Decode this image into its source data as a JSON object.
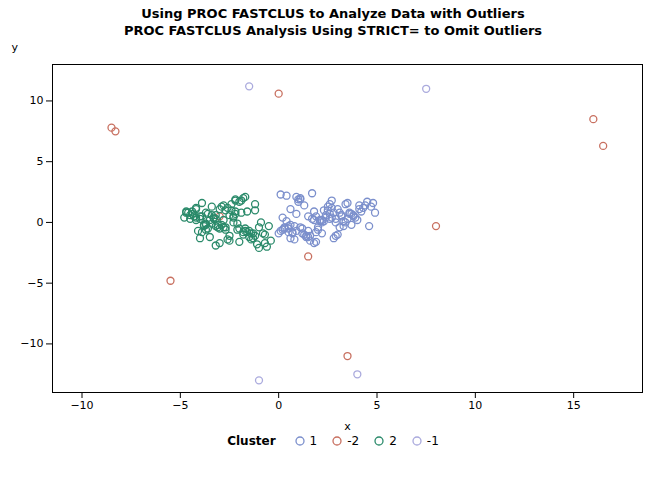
{
  "chart_data": {
    "type": "scatter",
    "title": "Using PROC FASTCLUS to Analyze Data with Outliers",
    "subtitle": "PROC FASTCLUS Analysis Using STRICT= to Omit Outliers",
    "xlabel": "x",
    "ylabel": "y",
    "xlim": [
      -11.5,
      18.5
    ],
    "ylim": [
      -14,
      13
    ],
    "xticks": [
      -10,
      -5,
      0,
      5,
      10,
      15
    ],
    "yticks": [
      -10,
      -5,
      0,
      5,
      10
    ],
    "grid": false,
    "legend": "bottom",
    "legend_title": "Cluster",
    "series": [
      {
        "name": "1",
        "color": "#7b8fcc",
        "x": [
          0.2,
          0.6,
          0.9,
          1.1,
          1.3,
          0.4,
          0.7,
          1.5,
          1.8,
          2.0,
          2.2,
          1.0,
          0.5,
          2.4,
          1.6,
          2.7,
          2.9,
          1.9,
          3.1,
          2.6,
          1.2,
          3.4,
          2.8,
          1.1,
          3.7,
          0.1,
          2.3,
          3.0,
          1.8,
          2.5,
          0.6,
          3.2,
          0.9,
          1.9,
          3.9,
          3.5,
          0.3,
          2.1,
          1.4,
          3.6,
          4.1,
          0.0,
          1.7,
          3.3,
          2.7,
          0.8,
          3.8,
          2.2,
          1.5,
          4.4,
          0.5,
          2.6,
          2.9,
          1.1,
          4.0,
          3.4,
          0.7,
          2.4,
          1.6,
          4.2,
          3.1,
          0.4,
          2.8,
          1.3,
          4.3,
          0.2,
          1.9,
          3.7,
          1.0,
          2.3,
          4.5,
          0.6,
          3.5,
          1.2,
          2.5,
          4.6,
          0.1,
          3.2,
          1.8,
          2.1,
          4.7,
          0.3,
          3.6,
          1.4,
          2.7,
          4.8,
          0.9,
          3.3,
          2.0,
          3.0,
          4.9,
          0.5,
          2.6,
          1.5,
          3.8,
          4.1,
          0.8,
          2.9,
          2.2,
          1.7
        ],
        "y": [
          0.4,
          1.1,
          0.7,
          -0.4,
          1.4,
          0.1,
          -0.9,
          0.5,
          0.9,
          -0.6,
          0.2,
          1.7,
          -0.3,
          0.6,
          -1.1,
          1.2,
          0.3,
          -0.8,
          0.8,
          1.5,
          -0.5,
          0.0,
          -1.3,
          1.9,
          0.7,
          -0.7,
          1.0,
          -1.0,
          0.2,
          1.3,
          -0.2,
          0.5,
          2.1,
          -1.6,
          0.4,
          1.6,
          -0.4,
          0.1,
          -1.2,
          0.8,
          1.1,
          -0.9,
          0.3,
          -0.3,
          1.8,
          -1.4,
          0.6,
          0.0,
          -0.7,
          1.4,
          -0.5,
          0.7,
          -1.1,
          2.0,
          0.2,
          1.5,
          -0.8,
          0.4,
          -1.5,
          0.9,
          -0.4,
          2.2,
          0.8,
          -1.0,
          1.2,
          -0.6,
          0.5,
          -0.2,
          1.9,
          0.1,
          1.7,
          -1.3,
          0.3,
          -0.9,
          1.0,
          -0.3,
          2.3,
          0.6,
          -1.7,
          0.2,
          1.3,
          -0.5,
          0.7,
          -1.1,
          0.4,
          1.6,
          -0.7,
          0.1,
          -0.4,
          1.1,
          0.8,
          -0.8,
          0.3,
          -1.2,
          0.5,
          1.4,
          -0.3,
          0.0,
          -0.9,
          2.4
        ]
      },
      {
        "name": "-2",
        "color": "#c87060",
        "x": [
          -8.5,
          -8.3,
          -5.5,
          0.0,
          -3.0,
          1.5,
          8.0,
          16.0,
          16.5,
          3.5
        ],
        "y": [
          7.8,
          7.5,
          -4.8,
          10.6,
          0.5,
          -2.8,
          -0.3,
          8.5,
          6.3,
          -11.0
        ]
      },
      {
        "name": "2",
        "color": "#2a8a6a",
        "x": [
          -3.2,
          -2.7,
          -2.2,
          -3.7,
          -3.0,
          -1.7,
          -3.4,
          -2.5,
          -4.2,
          -2.0,
          -3.9,
          -2.3,
          -4.7,
          -1.4,
          -3.2,
          -2.9,
          -2.1,
          -4.0,
          -2.6,
          -1.2,
          -3.7,
          -2.2,
          -4.4,
          -1.8,
          -3.5,
          -2.8,
          -1.0,
          -4.2,
          -1.5,
          -3.3,
          -3.0,
          -1.9,
          -3.8,
          -2.4,
          -0.7,
          -4.5,
          -1.7,
          -3.2,
          -2.7,
          -1.3,
          -4.0,
          -2.2,
          -0.5,
          -4.7,
          -2.0,
          -3.4,
          -2.8,
          -1.6,
          -3.9,
          -2.5,
          -0.9,
          -4.2,
          -1.2,
          -3.6,
          -3.1,
          -1.8,
          -3.7,
          -2.3,
          -1.1,
          -4.4,
          -1.4,
          -3.2,
          -2.9,
          -1.7,
          -4.1,
          -2.6,
          -0.8,
          -4.6,
          -1.5,
          -3.3,
          -3.0,
          -2.0,
          -3.8,
          -2.4,
          -0.6,
          -4.3,
          -1.8,
          -3.5,
          -2.7,
          -1.2,
          -3.9,
          -2.2,
          -0.4,
          -4.8,
          -2.1,
          -3.4,
          -2.8,
          -1.6,
          -4.0,
          -2.5,
          -1.0,
          -4.5,
          -1.3,
          -3.7,
          -3.1,
          -1.9,
          -3.6,
          -2.3,
          -0.7,
          -4.2
        ],
        "y": [
          0.3,
          -0.4,
          0.9,
          -0.2,
          1.1,
          -0.7,
          0.6,
          -1.1,
          0.4,
          -0.5,
          1.6,
          0.0,
          0.8,
          -0.9,
          -0.3,
          1.3,
          -0.6,
          0.5,
          -1.4,
          1.0,
          -0.1,
          1.9,
          0.7,
          -0.8,
          -1.2,
          0.2,
          -0.4,
          1.2,
          -0.7,
          0.4,
          -1.7,
          0.8,
          -0.2,
          1.5,
          -1.0,
          0.6,
          -0.5,
          -1.9,
          1.0,
          -1.3,
          0.3,
          1.8,
          -0.3,
          0.9,
          -1.6,
          -0.1,
          1.4,
          -0.8,
          0.5,
          -1.5,
          0.0,
          1.1,
          -1.1,
          0.7,
          -0.4,
          2.0,
          -0.6,
          0.4,
          -1.8,
          0.9,
          -1.4,
          0.6,
          -0.2,
          2.1,
          -0.7,
          1.2,
          -0.9,
          0.8,
          -1.2,
          0.3,
          -0.5,
          1.7,
          -0.3,
          1.0,
          -2.0,
          0.5,
          -1.0,
          0.2,
          -0.6,
          1.5,
          -0.8,
          0.7,
          -1.5,
          0.4,
          -0.1,
          1.3,
          -0.4,
          0.9,
          -1.3,
          0.6,
          -2.1,
          0.3,
          -0.9,
          0.8,
          -0.2,
          1.8,
          -0.5,
          0.5,
          -1.7,
          0.2
        ]
      },
      {
        "name": "-1",
        "color": "#aaaadd",
        "x": [
          -1.5,
          7.5,
          4.0,
          -1.0
        ],
        "y": [
          11.2,
          11.0,
          -12.5,
          -13.0
        ]
      }
    ]
  }
}
